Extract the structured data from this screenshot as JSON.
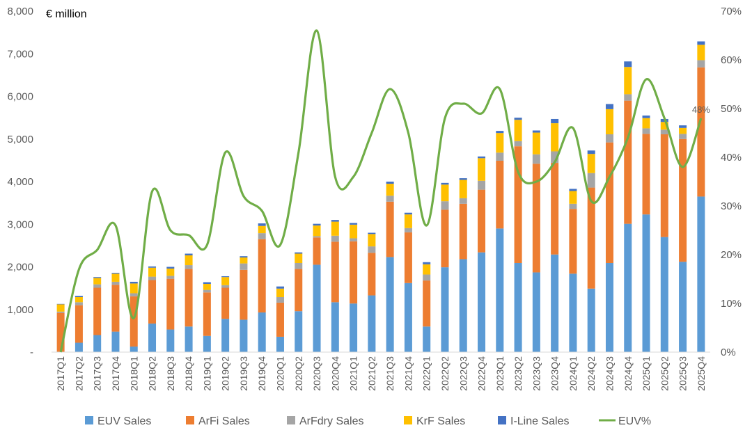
{
  "chart_data": {
    "type": "bar",
    "stacked": true,
    "unit_label": "€ million",
    "categories": [
      "2017Q1",
      "2017Q2",
      "2017Q3",
      "2017Q4",
      "2018Q1",
      "2018Q2",
      "2018Q3",
      "2018Q4",
      "2019Q1",
      "2019Q2",
      "2019Q3",
      "2019Q4",
      "2020Q1",
      "2020Q2",
      "2020Q3",
      "2020Q4",
      "2021Q1",
      "2021Q2",
      "2021Q3",
      "2021Q4",
      "2022Q1",
      "2022Q2",
      "2022Q3",
      "2022Q4",
      "2023Q1",
      "2023Q2",
      "2023Q3",
      "2023Q4",
      "2024Q1",
      "2024Q2",
      "2024Q3",
      "2024Q4",
      "2025Q1",
      "2025Q2",
      "2025Q3",
      "2025Q4"
    ],
    "series": [
      {
        "name": "EUV Sales",
        "color": "#5b9bd5",
        "values": [
          0,
          220,
          400,
          480,
          130,
          670,
          530,
          600,
          380,
          780,
          760,
          930,
          360,
          960,
          2050,
          1170,
          1140,
          1330,
          2230,
          1620,
          600,
          1990,
          2180,
          2340,
          2900,
          2090,
          1870,
          2290,
          1840,
          1490,
          2090,
          3010,
          3230,
          2700,
          2120,
          3650
        ]
      },
      {
        "name": "ArFi Sales",
        "color": "#ed7d31",
        "values": [
          920,
          880,
          1110,
          1100,
          1180,
          1020,
          1190,
          1350,
          1020,
          730,
          1170,
          1720,
          800,
          990,
          640,
          1420,
          1460,
          1000,
          1300,
          1190,
          1080,
          1350,
          1300,
          1470,
          1590,
          2740,
          2550,
          2150,
          1520,
          2370,
          2830,
          2890,
          1890,
          2410,
          2880,
          3030
        ]
      },
      {
        "name": "ArFdry Sales",
        "color": "#a5a5a5",
        "values": [
          30,
          70,
          80,
          70,
          70,
          80,
          70,
          90,
          60,
          60,
          150,
          140,
          130,
          140,
          30,
          140,
          70,
          150,
          140,
          100,
          140,
          200,
          130,
          210,
          190,
          120,
          220,
          270,
          120,
          340,
          190,
          150,
          130,
          110,
          120,
          170
        ]
      },
      {
        "name": "KrF Sales",
        "color": "#ffc000",
        "values": [
          170,
          120,
          150,
          190,
          230,
          210,
          170,
          230,
          140,
          190,
          140,
          170,
          200,
          220,
          250,
          330,
          320,
          290,
          280,
          320,
          240,
          390,
          430,
          530,
          460,
          500,
          510,
          660,
          300,
          450,
          590,
          640,
          240,
          180,
          140,
          360
        ]
      },
      {
        "name": "I-Line Sales",
        "color": "#4472c4",
        "values": [
          10,
          30,
          20,
          20,
          40,
          30,
          40,
          40,
          40,
          20,
          30,
          60,
          50,
          30,
          40,
          40,
          40,
          30,
          50,
          40,
          50,
          40,
          40,
          40,
          50,
          50,
          50,
          100,
          50,
          80,
          120,
          130,
          60,
          70,
          60,
          80
        ]
      }
    ],
    "line_series": {
      "name": "EUV%",
      "color": "#70ad47",
      "axis": "right",
      "values": [
        0,
        17,
        21,
        26,
        7,
        33,
        25,
        24,
        22,
        41,
        32,
        29,
        22,
        41,
        66,
        36,
        36,
        45,
        54,
        45,
        26,
        48,
        51,
        49,
        54,
        37,
        35,
        39,
        46,
        31,
        36,
        44,
        56,
        48,
        38,
        48
      ]
    },
    "ylim": [
      0,
      8000
    ],
    "yticks": [
      "-",
      "1,000",
      "2,000",
      "3,000",
      "4,000",
      "5,000",
      "6,000",
      "7,000",
      "8,000"
    ],
    "y2lim": [
      0,
      70
    ],
    "y2ticks": [
      "0%",
      "10%",
      "20%",
      "30%",
      "40%",
      "50%",
      "60%",
      "70%"
    ],
    "annotation": {
      "text": "48%",
      "category": "2025Q4",
      "value": 48
    },
    "legend_position": "bottom"
  }
}
